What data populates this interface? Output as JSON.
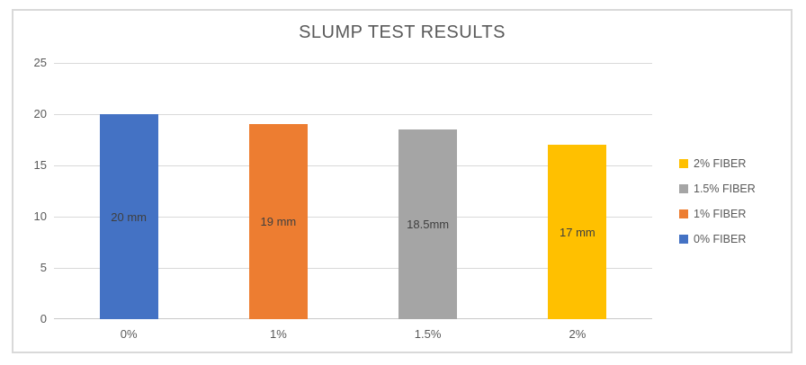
{
  "chart_data": {
    "type": "bar",
    "title": "SLUMP TEST RESULTS",
    "categories": [
      "0%",
      "1%",
      "1.5%",
      "2%"
    ],
    "values": [
      20,
      19,
      18.5,
      17
    ],
    "data_labels": [
      "20 mm",
      "19 mm",
      "18.5mm",
      "17 mm"
    ],
    "bar_colors": [
      "#4472C4",
      "#ED7D31",
      "#A5A5A5",
      "#FFC000"
    ],
    "legend": [
      {
        "label": "2% FIBER",
        "color": "#FFC000"
      },
      {
        "label": "1.5% FIBER",
        "color": "#A5A5A5"
      },
      {
        "label": "1% FIBER",
        "color": "#ED7D31"
      },
      {
        "label": "0% FIBER",
        "color": "#4472C4"
      }
    ],
    "legend_position": "right",
    "xlabel": "",
    "ylabel": "",
    "ylim": [
      0,
      25
    ],
    "yticks": [
      0,
      5,
      10,
      15,
      20,
      25
    ],
    "grid": true
  },
  "colors": {
    "grid": "#D9D9D9",
    "axis_line": "#C9C9C9",
    "chart_border": "#D9D9D9",
    "title_text": "#595959",
    "tick_text": "#595959",
    "data_label_text": "#3F3F3F",
    "background": "#FFFFFF"
  }
}
